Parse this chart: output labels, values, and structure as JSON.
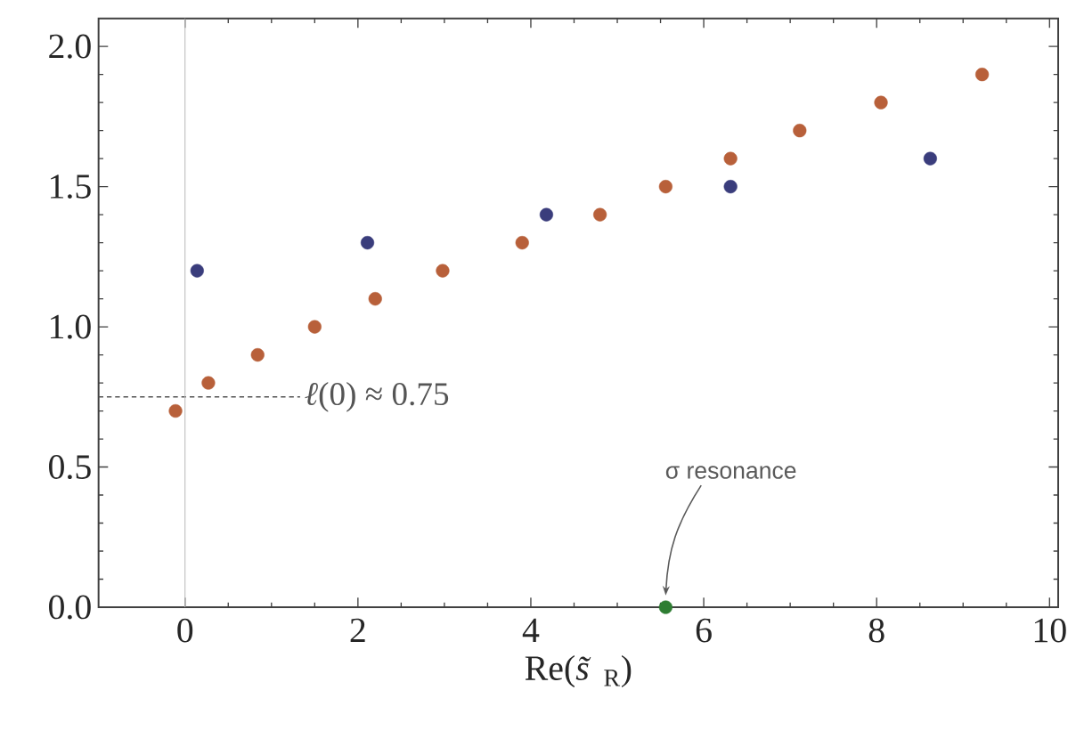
{
  "chart_data": {
    "type": "scatter",
    "xlabel": "Re(*s̃*$_{R}$)",
    "xlim": [
      -1,
      10.1
    ],
    "ylim": [
      0,
      2.1
    ],
    "xticks": [
      0,
      2,
      4,
      6,
      8,
      10
    ],
    "yticks": [
      {
        "value": 0,
        "label": "0.0"
      },
      {
        "value": 0.5,
        "label": "0.5"
      },
      {
        "value": 1,
        "label": "1.0"
      },
      {
        "value": 1.5,
        "label": "1.5"
      },
      {
        "value": 2,
        "label": "2.0"
      }
    ],
    "marker": "circle",
    "series": [
      {
        "color": "#b8603a",
        "x": [
          -0.11,
          0.27,
          0.84,
          1.5,
          2.2,
          2.98,
          3.9,
          4.8,
          5.56,
          6.31,
          7.11,
          8.05,
          9.22
        ],
        "values": [
          0.7,
          0.8,
          0.9,
          1.0,
          1.1,
          1.2,
          1.3,
          1.4,
          1.5,
          1.6,
          1.7,
          1.8,
          1.9
        ]
      },
      {
        "color": "#3a3d7c",
        "x": [
          0.14,
          2.11,
          4.18,
          6.31,
          8.62
        ],
        "values": [
          1.2,
          1.3,
          1.4,
          1.5,
          1.6
        ]
      },
      {
        "color": "#2e7d32",
        "x": [
          5.56
        ],
        "values": [
          0.0
        ]
      }
    ],
    "ref_lines": [
      {
        "axis": "y",
        "value": 0.75,
        "label": "*ℓ*(0) ≈ 0.75",
        "color": "#555555",
        "line_style": "dashed"
      },
      {
        "axis": "x",
        "value": 0,
        "color": "#bbbbbb",
        "line_style": "solid"
      }
    ],
    "annotations": [
      "σ resonance"
    ]
  }
}
